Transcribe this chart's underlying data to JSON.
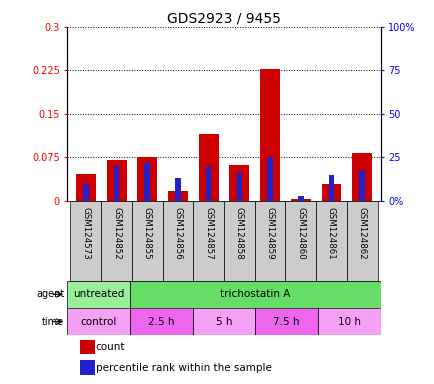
{
  "title": "GDS2923 / 9455",
  "samples": [
    "GSM124573",
    "GSM124852",
    "GSM124855",
    "GSM124856",
    "GSM124857",
    "GSM124858",
    "GSM124859",
    "GSM124860",
    "GSM124861",
    "GSM124862"
  ],
  "count_values": [
    0.047,
    0.07,
    0.076,
    0.018,
    0.115,
    0.062,
    0.228,
    0.003,
    0.03,
    0.083
  ],
  "percentile_pct": [
    10,
    20,
    22,
    13,
    20,
    16,
    25,
    3,
    15,
    18
  ],
  "left_ylim": [
    0,
    0.3
  ],
  "right_ylim": [
    0,
    100
  ],
  "left_yticks": [
    0,
    0.075,
    0.15,
    0.225,
    0.3
  ],
  "right_yticks": [
    0,
    25,
    50,
    75,
    100
  ],
  "left_ytick_labels": [
    "0",
    "0.075",
    "0.15",
    "0.225",
    "0.3"
  ],
  "right_ytick_labels": [
    "0%",
    "25",
    "50",
    "75",
    "100%"
  ],
  "bar_color_red": "#cc0000",
  "bar_color_blue": "#2222cc",
  "agent_labels": [
    {
      "label": "untreated",
      "start": 0,
      "end": 2,
      "color": "#99ee99"
    },
    {
      "label": "trichostatin A",
      "start": 2,
      "end": 10,
      "color": "#66dd66"
    }
  ],
  "time_labels": [
    {
      "label": "control",
      "start": 0,
      "end": 2,
      "color": "#f4a0f4"
    },
    {
      "label": "2.5 h",
      "start": 2,
      "end": 4,
      "color": "#ee66ee"
    },
    {
      "label": "5 h",
      "start": 4,
      "end": 6,
      "color": "#f4a0f4"
    },
    {
      "label": "7.5 h",
      "start": 6,
      "end": 8,
      "color": "#ee66ee"
    },
    {
      "label": "10 h",
      "start": 8,
      "end": 10,
      "color": "#f4a0f4"
    }
  ],
  "sample_bg_color": "#cccccc",
  "legend_count_label": "count",
  "legend_pct_label": "percentile rank within the sample"
}
